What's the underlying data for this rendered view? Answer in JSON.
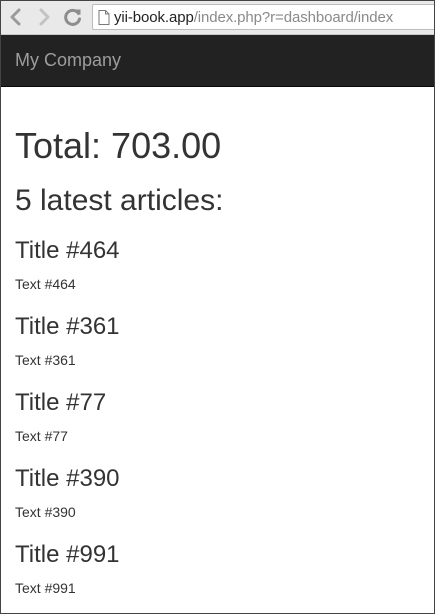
{
  "browser": {
    "url_host": "yii-book.app",
    "url_path": "/index.php?r=dashboard/index"
  },
  "navbar": {
    "brand": "My Company"
  },
  "main": {
    "total": "Total: 703.00",
    "latest_heading": "5 latest articles:",
    "articles": [
      {
        "title": "Title #464",
        "text": "Text #464"
      },
      {
        "title": "Title #361",
        "text": "Text #361"
      },
      {
        "title": "Title #77",
        "text": "Text #77"
      },
      {
        "title": "Title #390",
        "text": "Text #390"
      },
      {
        "title": "Title #991",
        "text": "Text #991"
      }
    ]
  }
}
